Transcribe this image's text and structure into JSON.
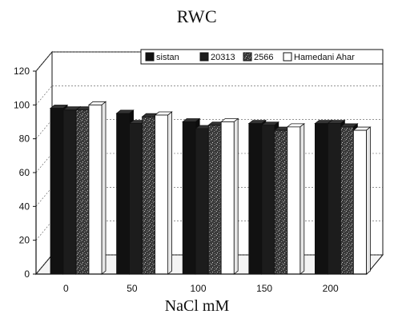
{
  "chart_data": {
    "type": "bar",
    "title": "RWC",
    "xlabel": "NaCl mM",
    "ylabel": "",
    "ylim": [
      0,
      120
    ],
    "yticks": [
      "0",
      "20",
      "40",
      "60",
      "80",
      "100",
      "120"
    ],
    "categories": [
      "0",
      "50",
      "100",
      "150",
      "200"
    ],
    "series": [
      {
        "name": "sistan",
        "color": "#111111",
        "pattern": "solid-black",
        "values": [
          98,
          95,
          90,
          89,
          89
        ]
      },
      {
        "name": "20313",
        "color": "#1a1a1a",
        "pattern": "solid-dark",
        "values": [
          97,
          89,
          86,
          88,
          89
        ]
      },
      {
        "name": "2566",
        "color": "#2a2a2a",
        "pattern": "speckled",
        "values": [
          97,
          93,
          88,
          85,
          87
        ]
      },
      {
        "name": "Hamedani Ahar",
        "color": "#ffffff",
        "pattern": "white",
        "values": [
          100,
          94,
          90,
          87,
          85
        ]
      }
    ],
    "legend_position": "top-right",
    "grid": true
  }
}
